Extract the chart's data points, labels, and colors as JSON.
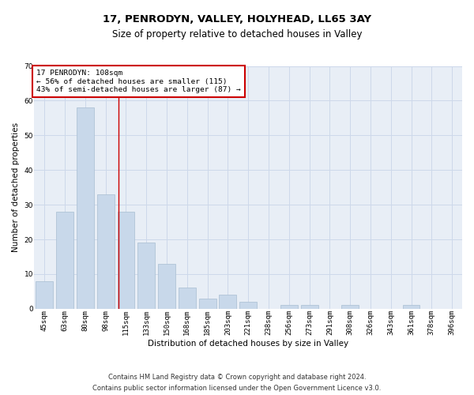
{
  "title": "17, PENRODYN, VALLEY, HOLYHEAD, LL65 3AY",
  "subtitle": "Size of property relative to detached houses in Valley",
  "xlabel": "Distribution of detached houses by size in Valley",
  "ylabel": "Number of detached properties",
  "footnote1": "Contains HM Land Registry data © Crown copyright and database right 2024.",
  "footnote2": "Contains public sector information licensed under the Open Government Licence v3.0.",
  "categories": [
    "45sqm",
    "63sqm",
    "80sqm",
    "98sqm",
    "115sqm",
    "133sqm",
    "150sqm",
    "168sqm",
    "185sqm",
    "203sqm",
    "221sqm",
    "238sqm",
    "256sqm",
    "273sqm",
    "291sqm",
    "308sqm",
    "326sqm",
    "343sqm",
    "361sqm",
    "378sqm",
    "396sqm"
  ],
  "values": [
    8,
    28,
    58,
    33,
    28,
    19,
    13,
    6,
    3,
    4,
    2,
    0,
    1,
    1,
    0,
    1,
    0,
    0,
    1,
    0,
    0
  ],
  "bar_color": "#c8d8ea",
  "bar_edge_color": "#a8bed2",
  "ylim": [
    0,
    70
  ],
  "yticks": [
    0,
    10,
    20,
    30,
    40,
    50,
    60,
    70
  ],
  "red_line_x": 3.62,
  "annotation_text": "17 PENRODYN: 108sqm\n← 56% of detached houses are smaller (115)\n43% of semi-detached houses are larger (87) →",
  "annotation_box_color": "#ffffff",
  "annotation_border_color": "#cc0000",
  "grid_color": "#cdd8ea",
  "background_color": "#e8eef6",
  "title_fontsize": 9.5,
  "subtitle_fontsize": 8.5,
  "axis_label_fontsize": 7.5,
  "tick_fontsize": 6.5,
  "annotation_fontsize": 6.8,
  "footnote_fontsize": 6.0
}
